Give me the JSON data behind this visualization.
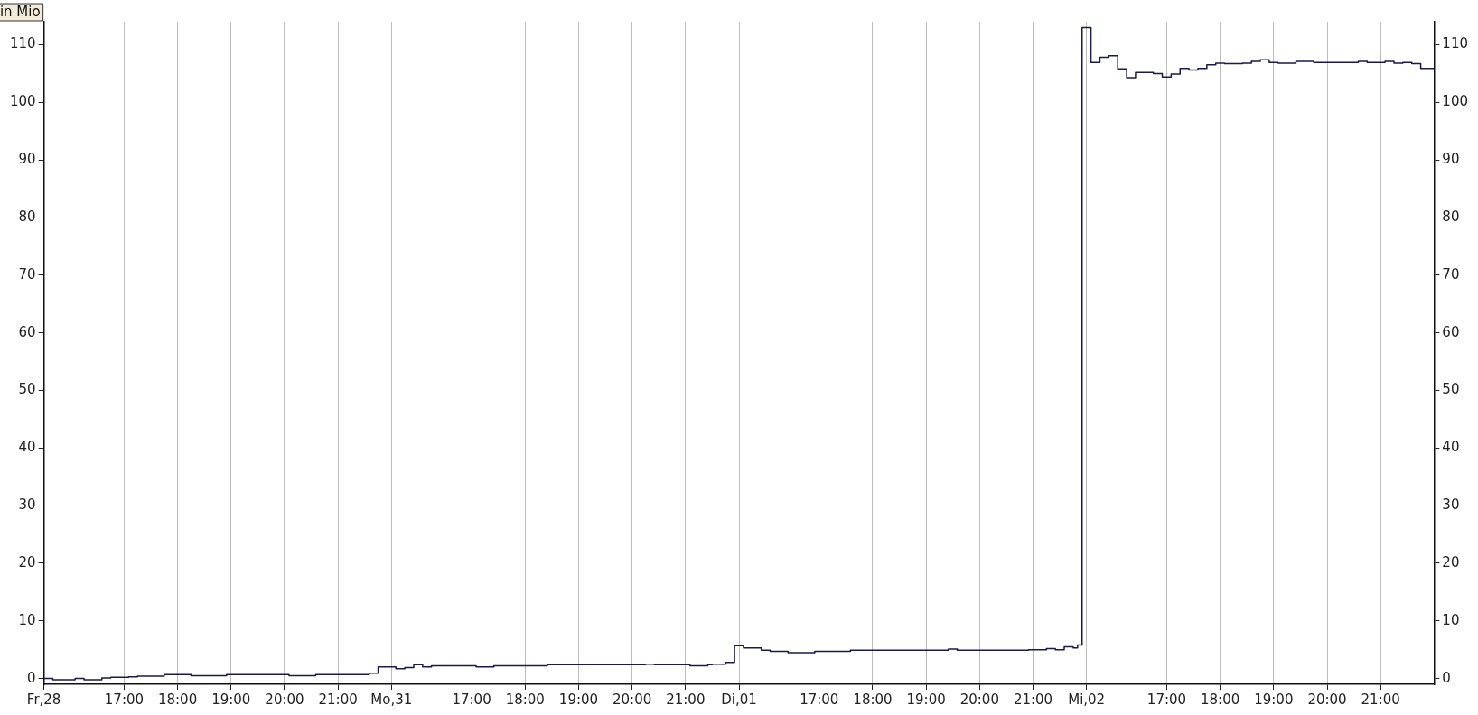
{
  "chart_data": {
    "type": "step",
    "ylabel": "in Mio",
    "grid": "x",
    "legend": false,
    "marker": "none",
    "line_style": "solid",
    "categories": [
      "Fr,28",
      null,
      null,
      null,
      null,
      null,
      null,
      null,
      null,
      null,
      null,
      null,
      null,
      null,
      null,
      null,
      null,
      null,
      "17:00",
      null,
      null,
      null,
      null,
      null,
      null,
      null,
      null,
      null,
      null,
      null,
      "18:00",
      null,
      null,
      null,
      null,
      null,
      null,
      null,
      null,
      null,
      null,
      null,
      "19:00",
      null,
      null,
      null,
      null,
      null,
      null,
      null,
      null,
      null,
      null,
      null,
      "20:00",
      null,
      null,
      null,
      null,
      null,
      null,
      null,
      null,
      null,
      null,
      null,
      "21:00",
      null,
      null,
      null,
      null,
      null,
      null,
      null,
      null,
      null,
      null,
      null,
      "Mo,31",
      null,
      null,
      null,
      null,
      null,
      null,
      null,
      null,
      null,
      null,
      null,
      null,
      null,
      null,
      null,
      null,
      null,
      "17:00",
      null,
      null,
      null,
      null,
      null,
      null,
      null,
      null,
      null,
      null,
      null,
      "18:00",
      null,
      null,
      null,
      null,
      null,
      null,
      null,
      null,
      null,
      null,
      null,
      "19:00",
      null,
      null,
      null,
      null,
      null,
      null,
      null,
      null,
      null,
      null,
      null,
      "20:00",
      null,
      null,
      null,
      null,
      null,
      null,
      null,
      null,
      null,
      null,
      null,
      "21:00",
      null,
      null,
      null,
      null,
      null,
      null,
      null,
      null,
      null,
      null,
      null,
      "Di,01",
      null,
      null,
      null,
      null,
      null,
      null,
      null,
      null,
      null,
      null,
      null,
      null,
      null,
      null,
      null,
      null,
      null,
      "17:00",
      null,
      null,
      null,
      null,
      null,
      null,
      null,
      null,
      null,
      null,
      null,
      "18:00",
      null,
      null,
      null,
      null,
      null,
      null,
      null,
      null,
      null,
      null,
      null,
      "19:00",
      null,
      null,
      null,
      null,
      null,
      null,
      null,
      null,
      null,
      null,
      null,
      "20:00",
      null,
      null,
      null,
      null,
      null,
      null,
      null,
      null,
      null,
      null,
      null,
      "21:00",
      null,
      null,
      null,
      null,
      null,
      null,
      null,
      null,
      null,
      null,
      null,
      "Mi,02",
      null,
      null,
      null,
      null,
      null,
      null,
      null,
      null,
      null,
      null,
      null,
      null,
      null,
      null,
      null,
      null,
      null,
      "17:00",
      null,
      null,
      null,
      null,
      null,
      null,
      null,
      null,
      null,
      null,
      null,
      "18:00",
      null,
      null,
      null,
      null,
      null,
      null,
      null,
      null,
      null,
      null,
      null,
      "19:00",
      null,
      null,
      null,
      null,
      null,
      null,
      null,
      null,
      null,
      null,
      null,
      "20:00",
      null,
      null,
      null,
      null,
      null,
      null,
      null,
      null,
      null,
      null,
      null,
      "21:00",
      null,
      null,
      null,
      null,
      null,
      null,
      null,
      null,
      null,
      null,
      null,
      null
    ],
    "ylim": [
      -1,
      114
    ],
    "yticks": [
      0,
      10,
      20,
      30,
      40,
      50,
      60,
      70,
      80,
      90,
      100,
      110
    ],
    "y2lim": [
      -1,
      114
    ],
    "y2ticks": [
      0,
      10,
      20,
      30,
      40,
      50,
      60,
      70,
      80,
      90,
      100,
      110
    ],
    "series": [
      {
        "color": "#1a1a4e",
        "values": [
          0,
          0,
          0,
          -0.2,
          -0.2,
          -0.2,
          -0.2,
          -0.2,
          0,
          0,
          -0.2,
          -0.2,
          -0.2,
          -0.2,
          0.1,
          0.1,
          0.2,
          0.2,
          0.2,
          0.2,
          0.3,
          0.3,
          0.4,
          0.4,
          0.4,
          0.4,
          0.4,
          0.4,
          0.7,
          0.7,
          0.7,
          0.7,
          0.7,
          0.7,
          0.5,
          0.5,
          0.5,
          0.5,
          0.5,
          0.5,
          0.5,
          0.5,
          0.7,
          0.7,
          0.7,
          0.7,
          0.7,
          0.7,
          0.7,
          0.7,
          0.7,
          0.7,
          0.7,
          0.7,
          0.7,
          0.7,
          0.5,
          0.5,
          0.5,
          0.5,
          0.5,
          0.5,
          0.7,
          0.7,
          0.7,
          0.7,
          0.7,
          0.7,
          0.7,
          0.7,
          0.7,
          0.7,
          0.7,
          0.7,
          0.9,
          0.9,
          2,
          2,
          2,
          2,
          1.7,
          1.7,
          1.9,
          1.9,
          2.4,
          2.4,
          2,
          2,
          2.2,
          2.2,
          2.2,
          2.2,
          2.2,
          2.2,
          2.2,
          2.2,
          2.2,
          2.2,
          2,
          2,
          2,
          2,
          2.2,
          2.2,
          2.2,
          2.2,
          2.2,
          2.2,
          2.2,
          2.2,
          2.2,
          2.2,
          2.2,
          2.2,
          2.4,
          2.4,
          2.4,
          2.4,
          2.4,
          2.4,
          2.4,
          2.4,
          2.4,
          2.4,
          2.4,
          2.4,
          2.4,
          2.4,
          2.4,
          2.4,
          2.4,
          2.4,
          2.4,
          2.4,
          2.4,
          2.4,
          2.5,
          2.5,
          2.4,
          2.4,
          2.4,
          2.4,
          2.4,
          2.4,
          2.4,
          2.4,
          2.2,
          2.2,
          2.2,
          2.2,
          2.4,
          2.5,
          2.5,
          2.5,
          2.8,
          2.8,
          5.7,
          5.7,
          5.3,
          5.3,
          5.3,
          5.3,
          4.9,
          4.9,
          4.7,
          4.7,
          4.7,
          4.7,
          4.5,
          4.5,
          4.5,
          4.5,
          4.5,
          4.5,
          4.7,
          4.7,
          4.7,
          4.7,
          4.7,
          4.7,
          4.7,
          4.7,
          4.9,
          4.9,
          4.9,
          4.9,
          4.9,
          4.9,
          4.9,
          4.9,
          4.9,
          4.9,
          4.9,
          4.9,
          4.9,
          4.9,
          4.9,
          4.9,
          4.9,
          4.9,
          4.9,
          4.9,
          4.9,
          4.9,
          5.1,
          5.1,
          4.9,
          4.9,
          4.9,
          4.9,
          4.9,
          4.9,
          4.9,
          4.9,
          4.9,
          4.9,
          4.9,
          4.9,
          4.9,
          4.9,
          4.9,
          4.9,
          5,
          5,
          5,
          5,
          5.2,
          5.2,
          5,
          5,
          5.5,
          5.5,
          5.3,
          5.8,
          113,
          113,
          106.9,
          106.9,
          107.8,
          107.8,
          108.1,
          108.1,
          105.8,
          105.8,
          104.3,
          104.3,
          105.2,
          105.2,
          105.2,
          105.2,
          105,
          105,
          104.4,
          104.4,
          104.9,
          104.9,
          105.9,
          105.9,
          105.6,
          105.6,
          105.9,
          105.9,
          106.5,
          106.5,
          106.8,
          106.8,
          106.7,
          106.7,
          106.7,
          106.7,
          106.8,
          106.8,
          107.1,
          107.1,
          107.4,
          107.4,
          106.9,
          106.9,
          106.8,
          106.8,
          106.8,
          106.8,
          107.1,
          107.1,
          107.1,
          107.1,
          106.9,
          106.9,
          106.9,
          106.9,
          106.9,
          106.9,
          106.9,
          106.9,
          106.9,
          106.9,
          107.1,
          107.1,
          106.9,
          106.9,
          106.9,
          106.9,
          107.1,
          107.1,
          106.8,
          106.8,
          106.9,
          106.9,
          106.7,
          106.7,
          105.9,
          105.9,
          105.9
        ]
      }
    ]
  }
}
